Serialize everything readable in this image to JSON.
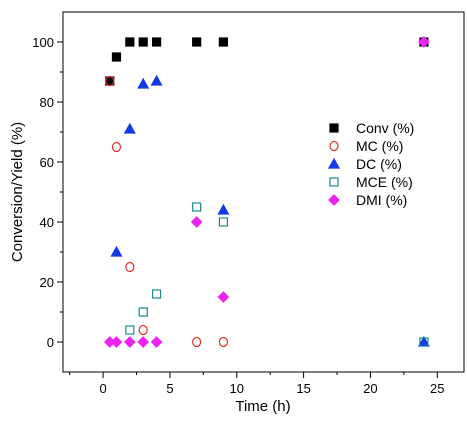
{
  "chart_data": {
    "type": "scatter",
    "xlabel": "Time (h)",
    "ylabel": "Conversion/Yield (%)",
    "xlim": [
      -3,
      27
    ],
    "ylim": [
      -10,
      110
    ],
    "xticks": [
      0,
      5,
      10,
      15,
      20,
      25
    ],
    "yticks": [
      0,
      20,
      40,
      60,
      80,
      100
    ],
    "grid": false,
    "legend_position": "right",
    "series": [
      {
        "name": "Conv (%)",
        "marker": "square",
        "filled": true,
        "color": "#000000",
        "points": [
          [
            0.5,
            87
          ],
          [
            1,
            95
          ],
          [
            2,
            100
          ],
          [
            3,
            100
          ],
          [
            4,
            100
          ],
          [
            7,
            100
          ],
          [
            9,
            100
          ],
          [
            24,
            100
          ]
        ]
      },
      {
        "name": "MC (%)",
        "marker": "circle",
        "filled": false,
        "color": "#e8302a",
        "points": [
          [
            0.5,
            87
          ],
          [
            1,
            65
          ],
          [
            2,
            25
          ],
          [
            3,
            4
          ],
          [
            7,
            0
          ],
          [
            9,
            0
          ]
        ]
      },
      {
        "name": "DC (%)",
        "marker": "triangle",
        "filled": true,
        "color": "#1238e8",
        "points": [
          [
            1,
            30
          ],
          [
            2,
            71
          ],
          [
            3,
            86
          ],
          [
            4,
            87
          ],
          [
            9,
            44
          ],
          [
            24,
            0
          ]
        ]
      },
      {
        "name": "MCE (%)",
        "marker": "square",
        "filled": false,
        "color": "#1a8a8a",
        "points": [
          [
            2,
            4
          ],
          [
            3,
            10
          ],
          [
            4,
            16
          ],
          [
            7,
            45
          ],
          [
            9,
            40
          ],
          [
            24,
            0
          ]
        ]
      },
      {
        "name": "DMI (%)",
        "marker": "diamond",
        "filled": true,
        "color": "#ee22ee",
        "points": [
          [
            0.5,
            0
          ],
          [
            1,
            0
          ],
          [
            2,
            0
          ],
          [
            3,
            0
          ],
          [
            4,
            0
          ],
          [
            7,
            40
          ],
          [
            9,
            15
          ],
          [
            24,
            100
          ]
        ]
      }
    ]
  }
}
